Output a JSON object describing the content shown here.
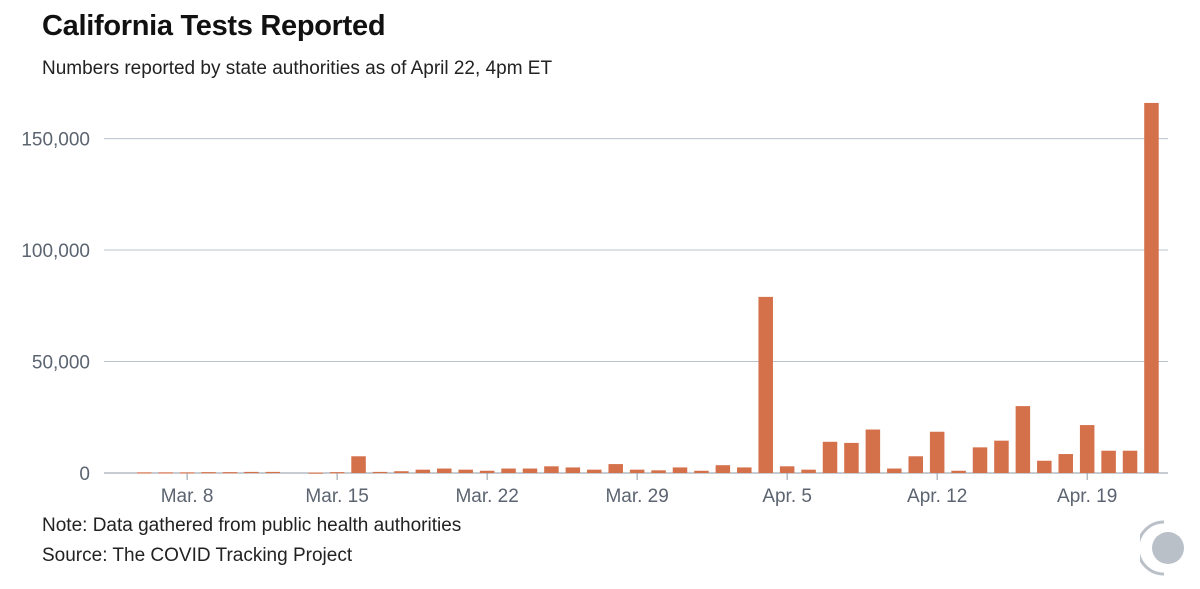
{
  "chart_data": {
    "type": "bar",
    "title": "California Tests Reported",
    "subtitle": "Numbers reported by state authorities as of April 22, 4pm ET",
    "xlabel": "",
    "ylabel": "",
    "ylim": [
      0,
      170000
    ],
    "yticks": [
      0,
      50000,
      100000,
      150000
    ],
    "ytick_labels": [
      "0",
      "50,000",
      "100,000",
      "150,000"
    ],
    "xtick_labels": [
      "Mar. 8",
      "Mar. 15",
      "Mar. 22",
      "Mar. 29",
      "Apr. 5",
      "Apr. 12",
      "Apr. 19"
    ],
    "xtick_indices": [
      2,
      9,
      16,
      23,
      30,
      37,
      44
    ],
    "categories": [
      "Mar. 6",
      "Mar. 7",
      "Mar. 8",
      "Mar. 9",
      "Mar. 10",
      "Mar. 11",
      "Mar. 12",
      "Mar. 13",
      "Mar. 14",
      "Mar. 15",
      "Mar. 16",
      "Mar. 17",
      "Mar. 18",
      "Mar. 19",
      "Mar. 20",
      "Mar. 21",
      "Mar. 22",
      "Mar. 23",
      "Mar. 24",
      "Mar. 25",
      "Mar. 26",
      "Mar. 27",
      "Mar. 28",
      "Mar. 29",
      "Mar. 30",
      "Mar. 31",
      "Apr. 1",
      "Apr. 2",
      "Apr. 3",
      "Apr. 4",
      "Apr. 5",
      "Apr. 6",
      "Apr. 7",
      "Apr. 8",
      "Apr. 9",
      "Apr. 10",
      "Apr. 11",
      "Apr. 12",
      "Apr. 13",
      "Apr. 14",
      "Apr. 15",
      "Apr. 16",
      "Apr. 17",
      "Apr. 18",
      "Apr. 19",
      "Apr. 20",
      "Apr. 21",
      "Apr. 22"
    ],
    "values": [
      300,
      300,
      300,
      400,
      400,
      500,
      500,
      0,
      200,
      400,
      7500,
      500,
      800,
      1500,
      2000,
      1500,
      1000,
      2000,
      2000,
      3000,
      2500,
      1500,
      4000,
      1500,
      1200,
      2500,
      1000,
      3500,
      2500,
      79000,
      3000,
      1500,
      14000,
      13500,
      19500,
      2000,
      7500,
      18500,
      1000,
      11500,
      14500,
      30000,
      5500,
      8500,
      21500,
      10000,
      10000,
      166000
    ],
    "bar_color": "#d4704a",
    "grid": true,
    "grid_color": "#b8c3cc"
  },
  "footer": {
    "note": "Note: Data gathered from public health authorities",
    "source": "Source: The COVID Tracking Project"
  },
  "logo": {
    "icon": "covid-tracking-project-logo-icon",
    "color": "#b9c0c7"
  }
}
